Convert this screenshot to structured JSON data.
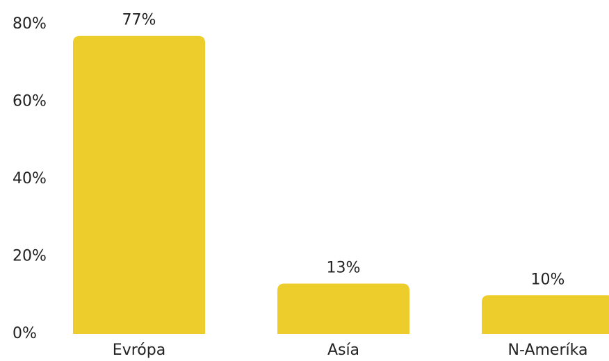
{
  "chart_data": {
    "type": "bar",
    "categories": [
      "Evrópa",
      "Asía",
      "N-Ameríka"
    ],
    "values": [
      77,
      13,
      10
    ],
    "value_labels": [
      "77%",
      "13%",
      "10%"
    ],
    "color": "#edcd2b",
    "ylim": [
      0,
      80
    ],
    "yticks": [
      {
        "value": 0,
        "label": "0%"
      },
      {
        "value": 20,
        "label": "20%"
      },
      {
        "value": 40,
        "label": "40%"
      },
      {
        "value": 60,
        "label": "60%"
      },
      {
        "value": 80,
        "label": "80%"
      }
    ],
    "grid": false
  }
}
